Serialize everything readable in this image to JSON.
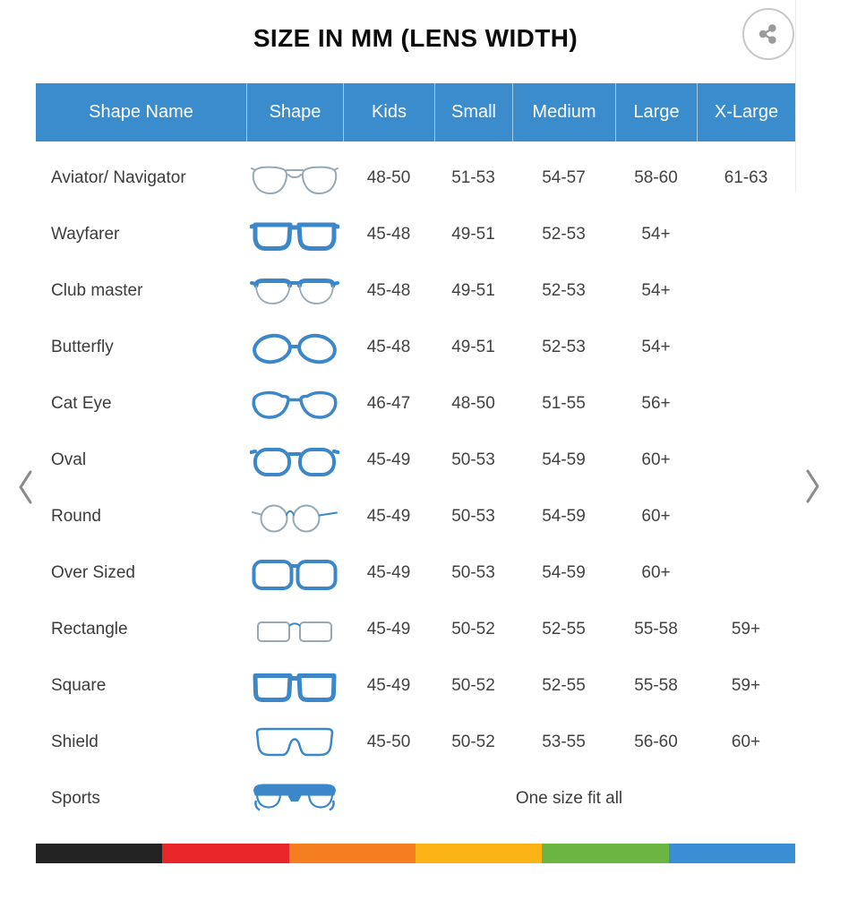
{
  "page": {
    "title": "SIZE IN MM (LENS WIDTH)"
  },
  "header_icons": {
    "share": "share-icon"
  },
  "nav": {
    "prev": "chevron-left-icon",
    "next": "chevron-right-icon"
  },
  "colors": {
    "header_blue": "#3a8ccd",
    "icon_blue": "#3b87c9",
    "icon_gray": "#96a9b4",
    "text_dark": "#3c3c3c",
    "stripe": [
      "#232323",
      "#e8262a",
      "#f57e20",
      "#fcb316",
      "#6bb543",
      "#3a8ed3"
    ]
  },
  "table": {
    "headers": [
      "Shape Name",
      "Shape",
      "Kids",
      "Small",
      "Medium",
      "Large",
      "X-Large"
    ],
    "rows": [
      {
        "name": "Aviator/ Navigator",
        "icon": "aviator-glasses-icon",
        "sizes": {
          "kids": "48-50",
          "small": "51-53",
          "medium": "54-57",
          "large": "58-60",
          "xlarge": "61-63"
        }
      },
      {
        "name": "Wayfarer",
        "icon": "wayfarer-glasses-icon",
        "sizes": {
          "kids": "45-48",
          "small": "49-51",
          "medium": "52-53",
          "large": "54+",
          "xlarge": ""
        }
      },
      {
        "name": "Club master",
        "icon": "clubmaster-glasses-icon",
        "sizes": {
          "kids": "45-48",
          "small": "49-51",
          "medium": "52-53",
          "large": "54+",
          "xlarge": ""
        }
      },
      {
        "name": "Butterfly",
        "icon": "butterfly-glasses-icon",
        "sizes": {
          "kids": "45-48",
          "small": "49-51",
          "medium": "52-53",
          "large": "54+",
          "xlarge": ""
        }
      },
      {
        "name": "Cat Eye",
        "icon": "cateye-glasses-icon",
        "sizes": {
          "kids": "46-47",
          "small": "48-50",
          "medium": "51-55",
          "large": "56+",
          "xlarge": ""
        }
      },
      {
        "name": "Oval",
        "icon": "oval-glasses-icon",
        "sizes": {
          "kids": "45-49",
          "small": "50-53",
          "medium": "54-59",
          "large": "60+",
          "xlarge": ""
        }
      },
      {
        "name": "Round",
        "icon": "round-glasses-icon",
        "sizes": {
          "kids": "45-49",
          "small": "50-53",
          "medium": "54-59",
          "large": "60+",
          "xlarge": ""
        }
      },
      {
        "name": "Over Sized",
        "icon": "oversized-glasses-icon",
        "sizes": {
          "kids": "45-49",
          "small": "50-53",
          "medium": "54-59",
          "large": "60+",
          "xlarge": ""
        }
      },
      {
        "name": "Rectangle",
        "icon": "rectangle-glasses-icon",
        "sizes": {
          "kids": "45-49",
          "small": "50-52",
          "medium": "52-55",
          "large": "55-58",
          "xlarge": "59+"
        }
      },
      {
        "name": "Square",
        "icon": "square-glasses-icon",
        "sizes": {
          "kids": "45-49",
          "small": "50-52",
          "medium": "52-55",
          "large": "55-58",
          "xlarge": "59+"
        }
      },
      {
        "name": "Shield",
        "icon": "shield-glasses-icon",
        "sizes": {
          "kids": "45-50",
          "small": "50-52",
          "medium": "53-55",
          "large": "56-60",
          "xlarge": "60+"
        }
      },
      {
        "name": "Sports",
        "icon": "sports-glasses-icon",
        "span_text": "One size fit all"
      }
    ]
  }
}
